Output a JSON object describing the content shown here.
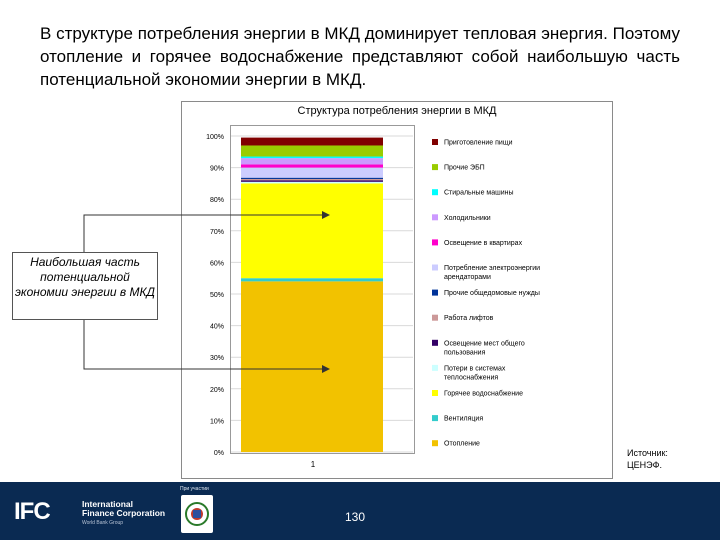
{
  "heading": "В структуре потребления энергии в МКД доминирует тепловая энергия. Поэтому отопление и горячее водоснабжение представляют собой наибольшую часть потенциальной экономии энергии в МКД.",
  "callout": "Наибольшая часть потенциальной экономии энергии в МКД",
  "source": [
    "Источник:",
    "ЦЕНЭФ."
  ],
  "footer": {
    "logo_text": "IFC",
    "org_name": [
      "International",
      "Finance Corporation"
    ],
    "org_sub": "World Bank Group",
    "with_label": "При участии",
    "page_number": "130"
  },
  "colors": {
    "footer_bg": "#0a2a52",
    "arrow": "#333333"
  },
  "chart_data": {
    "type": "bar",
    "stacked": true,
    "title": "Структура потребления энергии в МКД",
    "categories": [
      "1"
    ],
    "y_tick_labels": [
      "0%",
      "10%",
      "20%",
      "30%",
      "40%",
      "50%",
      "60%",
      "70%",
      "80%",
      "90%",
      "100%"
    ],
    "ylim": [
      0,
      100
    ],
    "grid": true,
    "legend_position": "right",
    "series": [
      {
        "name": "Отопление",
        "values": [
          54
        ],
        "color": "#F2C200"
      },
      {
        "name": "Вентиляция",
        "values": [
          1
        ],
        "color": "#33CCCC"
      },
      {
        "name": "Горячее водоснабжение",
        "values": [
          30
        ],
        "color": "#FFFF00"
      },
      {
        "name": "Потери в системах теплоснабжения",
        "values": [
          0.5
        ],
        "color": "#CCFFFF"
      },
      {
        "name": "Освещение мест общего пользования",
        "values": [
          0.5
        ],
        "color": "#330066"
      },
      {
        "name": "Работа лифтов",
        "values": [
          0.4
        ],
        "color": "#CC9999"
      },
      {
        "name": "Прочие общедомовые нужды",
        "values": [
          0.4
        ],
        "color": "#003399"
      },
      {
        "name": "Потребление электроэнергии арендаторами",
        "values": [
          3.2
        ],
        "color": "#CCCCFF"
      },
      {
        "name": "Освещение в квартирах",
        "values": [
          1
        ],
        "color": "#FF00CC"
      },
      {
        "name": "Холодильники",
        "values": [
          2
        ],
        "color": "#CC99FF"
      },
      {
        "name": "Стиральные машины",
        "values": [
          0.5
        ],
        "color": "#00FFFF"
      },
      {
        "name": "Прочие ЭБП",
        "values": [
          3.5
        ],
        "color": "#99CC00"
      },
      {
        "name": "Приготовление пищи",
        "values": [
          2.5
        ],
        "color": "#800000"
      }
    ]
  }
}
